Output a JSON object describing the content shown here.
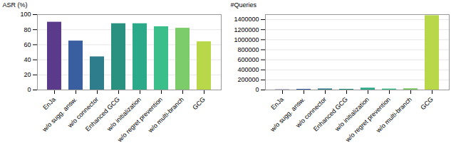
{
  "chart_data": [
    {
      "type": "bar",
      "categories": [
        "EnJa",
        "w/o sugg. answ.",
        "w/o connector",
        "Enhanced GCG",
        "w/o initialization",
        "w/o regret prevention",
        "w/o multi-branch",
        "GCG"
      ],
      "values": [
        90,
        65,
        44,
        88,
        88,
        84,
        82,
        64
      ],
      "colors": [
        "#5b3a8c",
        "#3a5fa0",
        "#2e7d8c",
        "#2a9080",
        "#2aaa88",
        "#3abf8a",
        "#7dcc6a",
        "#b8d84a"
      ],
      "y_label": "ASR (%)",
      "ylim": [
        0,
        100
      ],
      "yticks": [
        0,
        20,
        40,
        60,
        80,
        100
      ],
      "grid": true
    },
    {
      "type": "bar",
      "categories": [
        "EnJa",
        "w/o sugg. answ.",
        "w/o connector",
        "Enhanced GCG",
        "w/o initialization",
        "w/o regret prevention",
        "w/o multi-branch",
        "GCG"
      ],
      "values": [
        5000,
        14000,
        22000,
        15000,
        38000,
        20000,
        26000,
        1480000
      ],
      "colors": [
        "#5b3a8c",
        "#3a5fa0",
        "#2e7d8c",
        "#2a9080",
        "#2aaa88",
        "#3abf8a",
        "#7dcc6a",
        "#b8d84a"
      ],
      "y_label": "#Queries",
      "ylim": [
        0,
        1500000
      ],
      "yticks": [
        0,
        200000,
        400000,
        600000,
        800000,
        1000000,
        1200000,
        1400000
      ],
      "grid": true
    }
  ]
}
